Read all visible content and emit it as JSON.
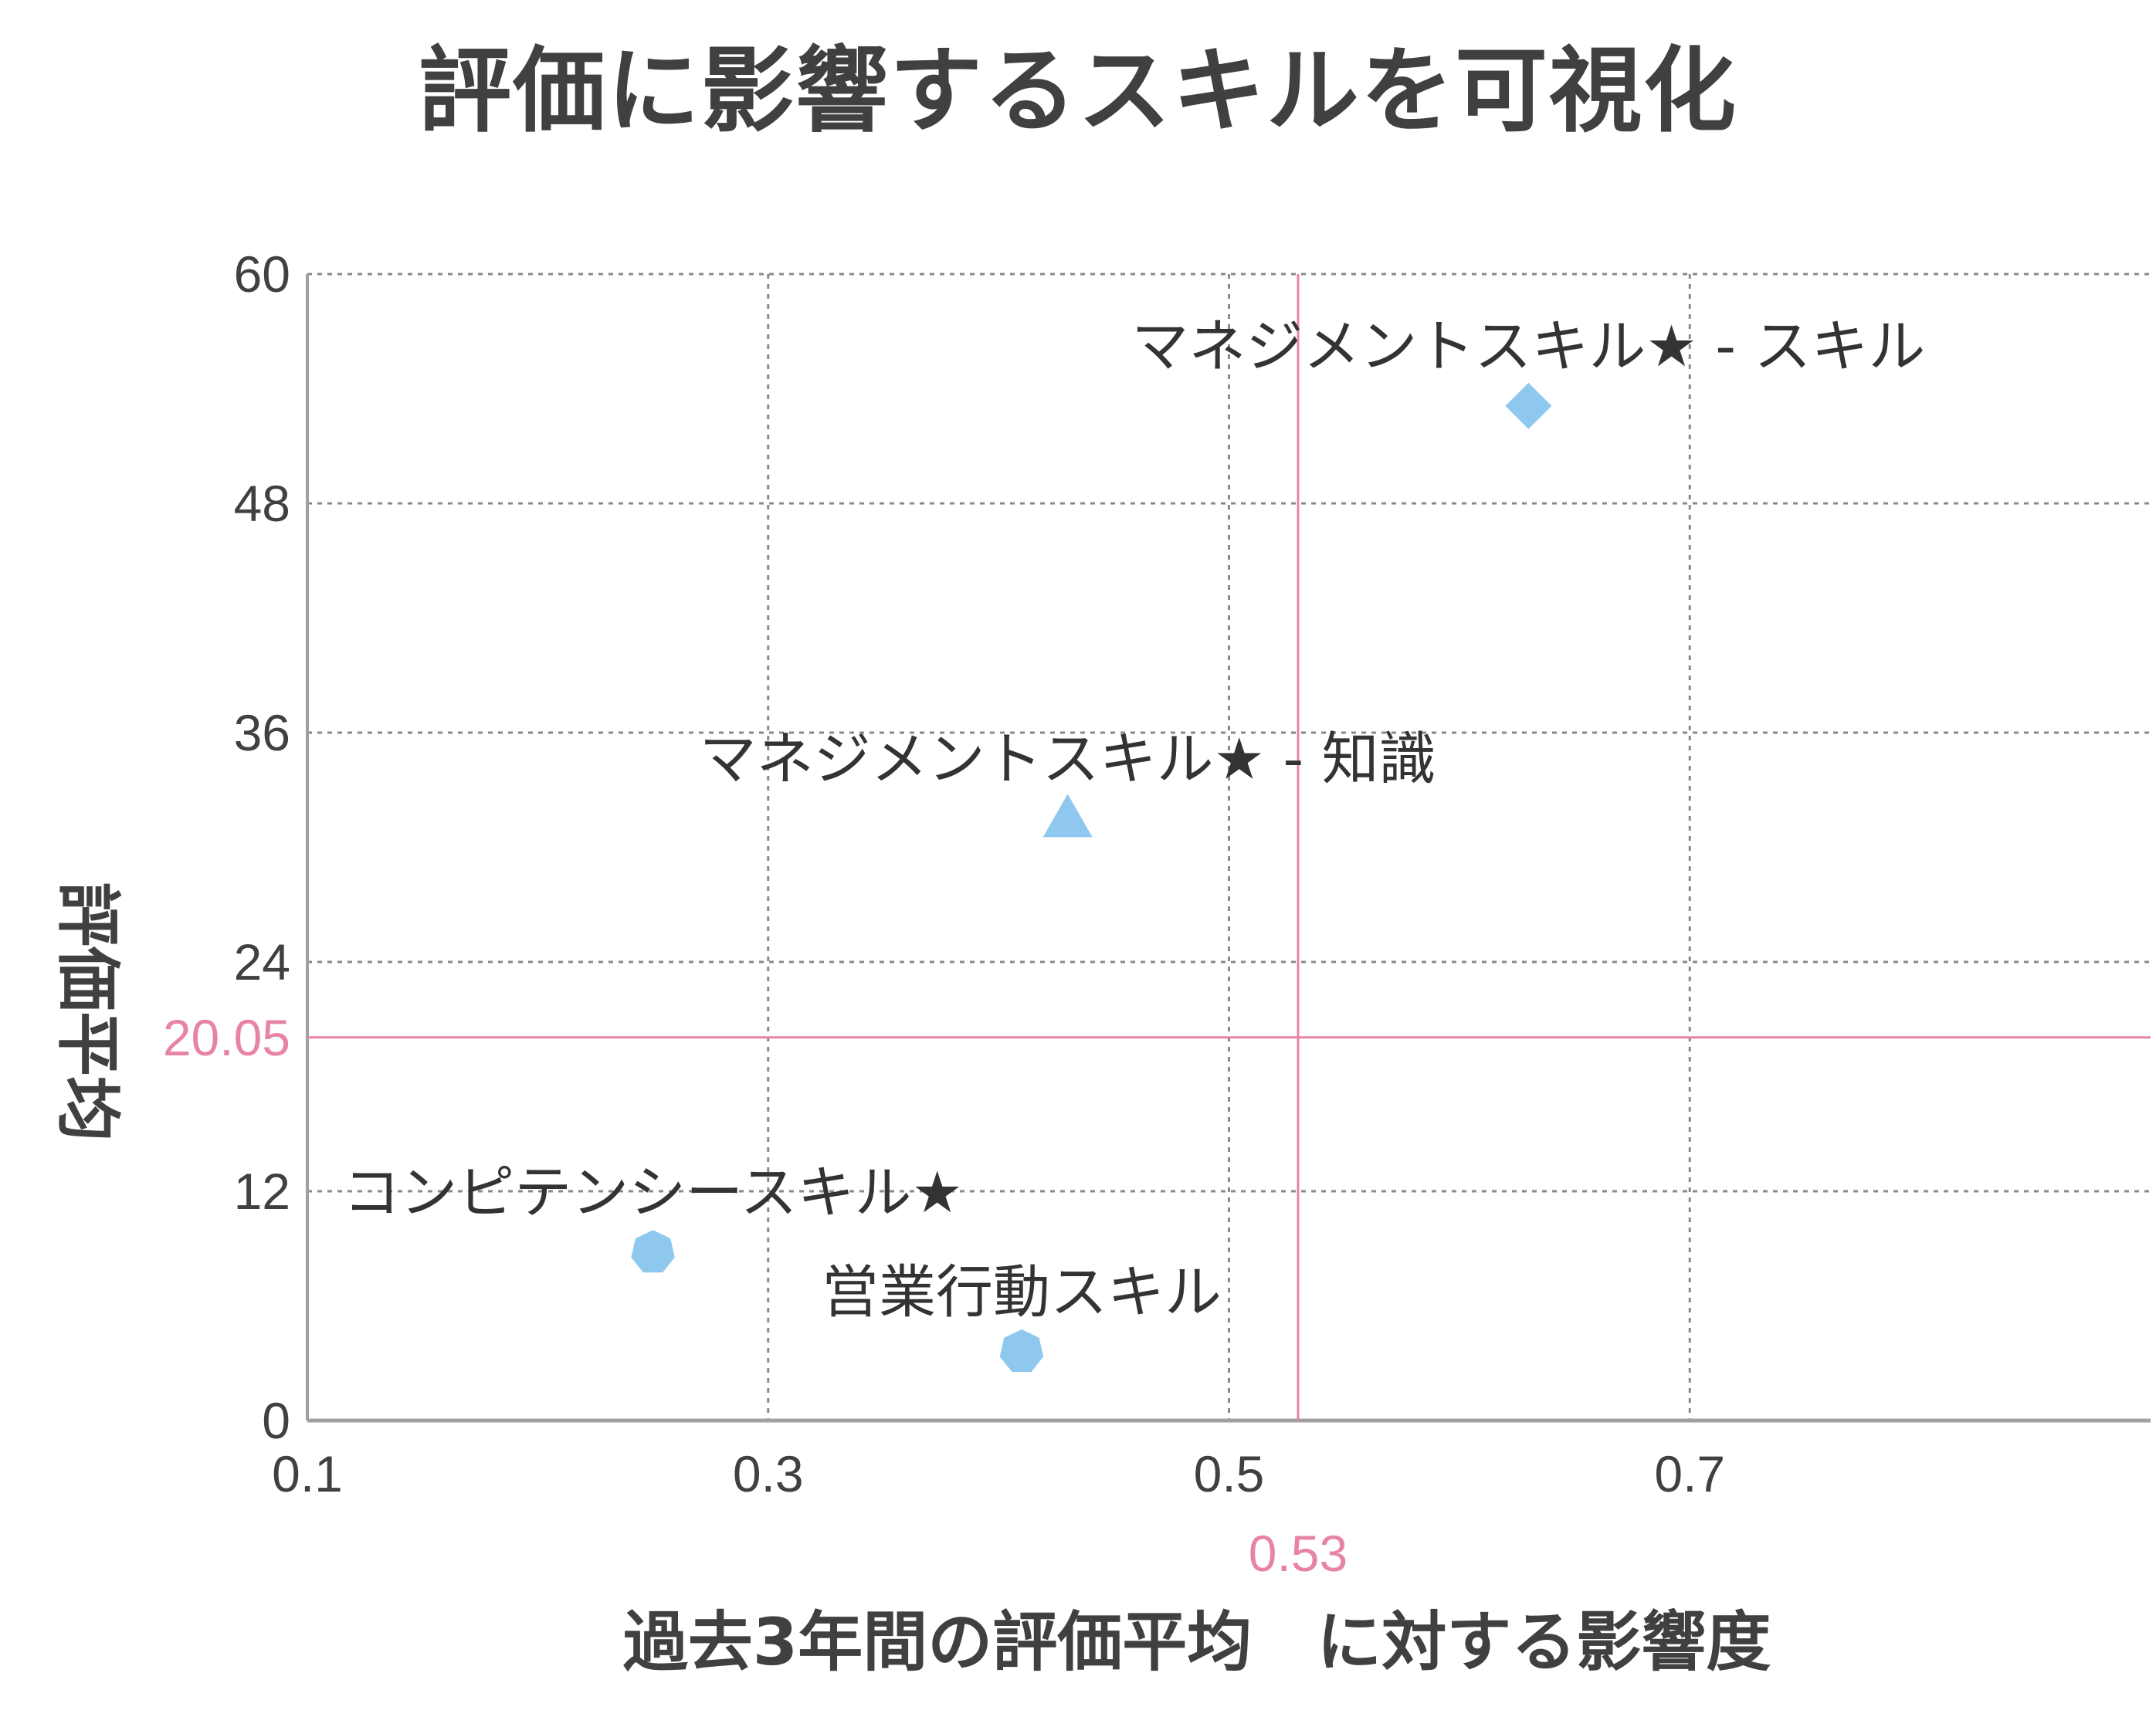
{
  "chart_data": {
    "type": "scatter",
    "title": "評価に影響するスキルを可視化",
    "xlabel": "過去3年間の評価平均　に対する影響度",
    "ylabel": "評価平均",
    "xlim": [
      0.1,
      0.9
    ],
    "ylim": [
      0,
      60
    ],
    "xticks": [
      0.1,
      0.3,
      0.5,
      0.7
    ],
    "yticks": [
      0,
      12,
      24,
      36,
      48,
      60
    ],
    "grid": true,
    "reference_lines": {
      "x": 0.53,
      "x_label": "0.53",
      "y": 20.05,
      "y_label": "20.05",
      "color": "#e784a6"
    },
    "points": [
      {
        "label": "マネジメントスキル★ - スキル",
        "x": 0.63,
        "y": 53.1,
        "marker": "diamond"
      },
      {
        "label": "マネジメントスキル★ - 知識",
        "x": 0.43,
        "y": 31.5,
        "marker": "triangle"
      },
      {
        "label": "コンピテンシースキル★",
        "x": 0.25,
        "y": 8.8,
        "marker": "heptagon"
      },
      {
        "label": "営業行動スキル",
        "x": 0.41,
        "y": 3.6,
        "marker": "heptagon"
      }
    ],
    "marker_color": "#8ec8ee",
    "grid_color": "#8a8a8a",
    "axis_color": "#a0a0a0"
  }
}
